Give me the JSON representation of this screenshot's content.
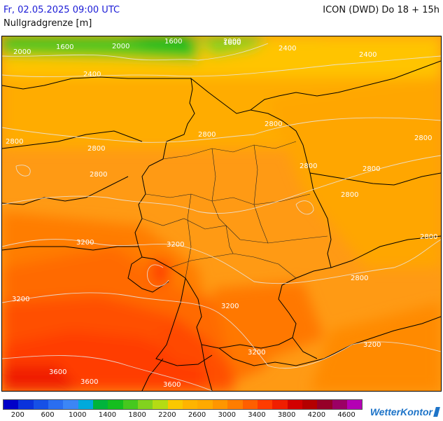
{
  "header": {
    "datetime": "Fr, 02.05.2025 09:00 UTC",
    "model": "ICON (DWD) Do 18 + 15h",
    "parameter": "Nullgradgrenze [m]"
  },
  "map_labels": [
    "1600",
    "2000",
    "1600",
    "2000",
    "1600",
    "2000",
    "2400",
    "2400",
    "2400",
    "2800",
    "2800",
    "2800",
    "2800",
    "2800",
    "2800",
    "2800",
    "2800",
    "2800",
    "2800",
    "2800",
    "3200",
    "3200",
    "3200",
    "3200",
    "3200",
    "3200",
    "3600",
    "3600",
    "3600"
  ],
  "legend": {
    "colors": [
      "#0000c8",
      "#0a32dc",
      "#1650e6",
      "#2a6ef0",
      "#3c86f5",
      "#00aadc",
      "#00b43c",
      "#14be1e",
      "#46c81e",
      "#82d21e",
      "#b4dc14",
      "#fac800",
      "#ffb400",
      "#ffaa00",
      "#ff9600",
      "#ff7d00",
      "#ff5f00",
      "#ff3c00",
      "#f01e00",
      "#d20000",
      "#b40000",
      "#960028",
      "#9b0064",
      "#b400b4"
    ],
    "labels": [
      "200",
      "600",
      "1000",
      "1400",
      "1800",
      "2200",
      "2600",
      "3000",
      "3400",
      "3800",
      "4200",
      "4600"
    ]
  },
  "logo": "WetterKontor"
}
